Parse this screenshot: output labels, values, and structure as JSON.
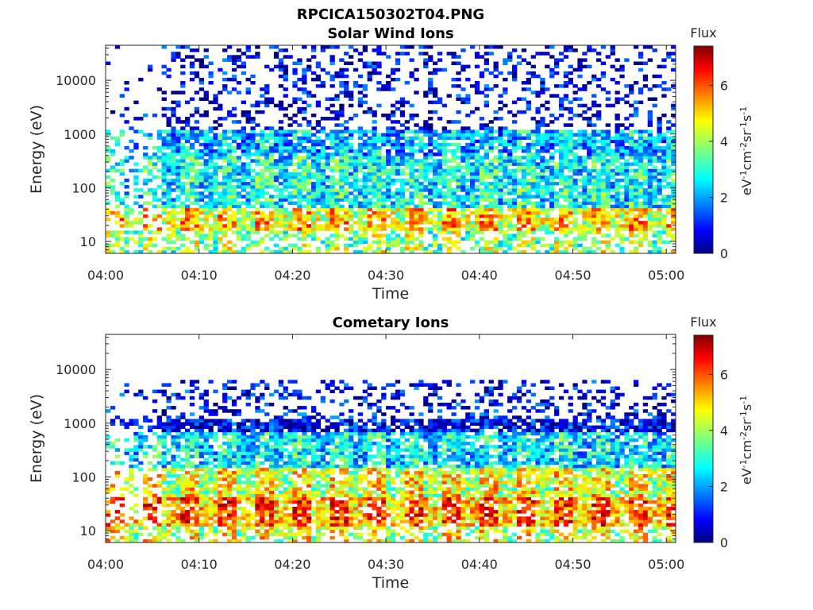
{
  "figure_title": "RPCICA150302T04.PNG",
  "chart_data": [
    {
      "type": "heatmap",
      "title": "Solar Wind Ions",
      "xlabel": "Time",
      "ylabel": "Energy (eV)",
      "yscale": "log",
      "xlim": [
        "04:00",
        "05:01"
      ],
      "ylim": [
        6,
        45000
      ],
      "xticks": [
        "04:00",
        "04:10",
        "04:20",
        "04:30",
        "04:40",
        "04:50",
        "05:00"
      ],
      "yticks": [
        "10",
        "100",
        "1000",
        "10000"
      ],
      "colorbar": {
        "label": "Flux",
        "units": "eV-1cm-2sr-1s-1",
        "ticks": [
          "0",
          "2",
          "4",
          "6"
        ],
        "range": [
          0,
          7.4
        ],
        "colormap": "jet"
      },
      "grid": false,
      "bands": [
        {
          "range_ev": [
            15,
            45
          ],
          "level": 5.3
        },
        {
          "range_ev": [
            45,
            400
          ],
          "level": 3.1
        },
        {
          "range_ev": [
            400,
            1200
          ],
          "level": 2.5
        },
        {
          "range_ev": [
            1200,
            45000
          ],
          "level": 0.9
        }
      ]
    },
    {
      "type": "heatmap",
      "title": "Cometary Ions",
      "xlabel": "Time",
      "ylabel": "Energy (eV)",
      "yscale": "log",
      "xlim": [
        "04:00",
        "05:01"
      ],
      "ylim": [
        6,
        45000
      ],
      "xticks": [
        "04:00",
        "04:10",
        "04:20",
        "04:30",
        "04:40",
        "04:50",
        "05:00"
      ],
      "yticks": [
        "10",
        "100",
        "1000",
        "10000"
      ],
      "colorbar": {
        "label": "Flux",
        "units": "eV-1cm-2sr-1s-1",
        "ticks": [
          "0",
          "2",
          "4",
          "6"
        ],
        "range": [
          0,
          7.4
        ],
        "colormap": "jet"
      },
      "grid": false,
      "bands": [
        {
          "range_ev": [
            12,
            40
          ],
          "level": 6.1
        },
        {
          "range_ev": [
            40,
            150
          ],
          "level": 4.9
        },
        {
          "range_ev": [
            150,
            700
          ],
          "level": 2.9
        },
        {
          "range_ev": [
            700,
            6000
          ],
          "level": 1.0
        }
      ]
    }
  ]
}
